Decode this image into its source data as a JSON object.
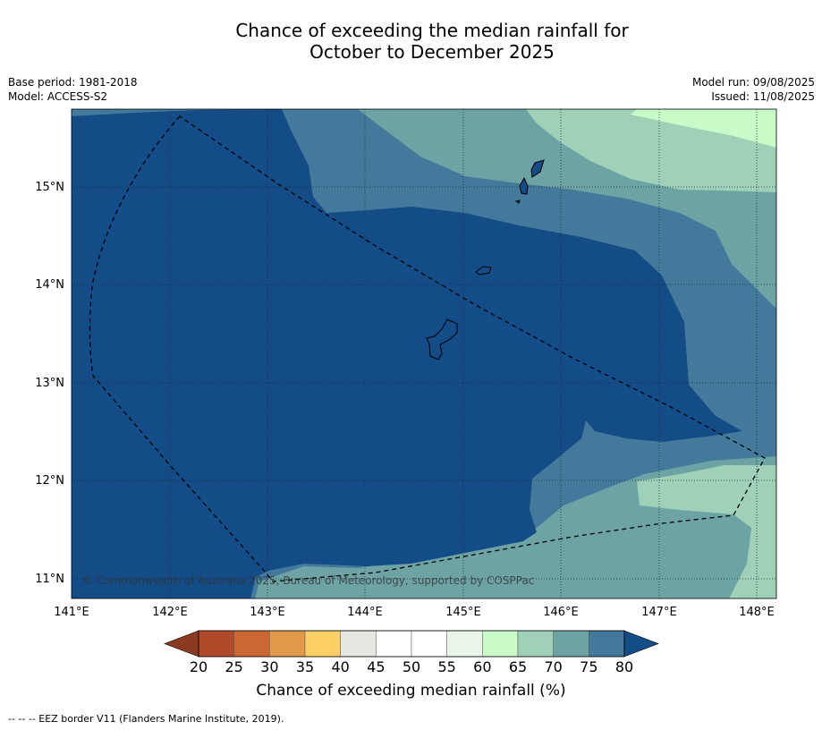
{
  "title": {
    "line1": "Chance of exceeding the median rainfall for",
    "line2": "October to December 2025"
  },
  "meta_left": {
    "base_period": "Base period: 1981-2018",
    "model": "Model: ACCESS-S2"
  },
  "meta_right": {
    "model_run": "Model run: 09/08/2025",
    "issued": "Issued: 11/08/2025"
  },
  "map": {
    "copyright": "© Commonwealth of Australia 2025, Bureau of Meteorology, supported by COSPPac",
    "lon_ticks": [
      "141°E",
      "142°E",
      "143°E",
      "144°E",
      "145°E",
      "146°E",
      "147°E",
      "148°E"
    ],
    "lat_ticks": [
      "15°N",
      "14°N",
      "13°N",
      "12°N",
      "11°N"
    ]
  },
  "colorbar": {
    "ticks": [
      "20",
      "25",
      "30",
      "35",
      "40",
      "45",
      "50",
      "55",
      "60",
      "65",
      "70",
      "75",
      "80"
    ],
    "colors": [
      "#b04a2a",
      "#cc6633",
      "#e09a4a",
      "#fdd067",
      "#e8e6e0",
      "#ffffff",
      "#ffffff",
      "#e9f6e9",
      "#c9fbc8",
      "#9ed1b8",
      "#6ea3a5",
      "#437a9b"
    ],
    "under_color": "#8b3a22",
    "over_color": "#134c87",
    "label": "Chance of exceeding median rainfall (%)"
  },
  "footnote": "-- -- -- EEZ border V11 (Flanders Marine Institute, 2019).",
  "colors": {
    "c80": "#134c87",
    "c75": "#437a9b",
    "c70": "#6ea3a5",
    "c65": "#9ed1b8",
    "c60": "#c9fbc8"
  }
}
